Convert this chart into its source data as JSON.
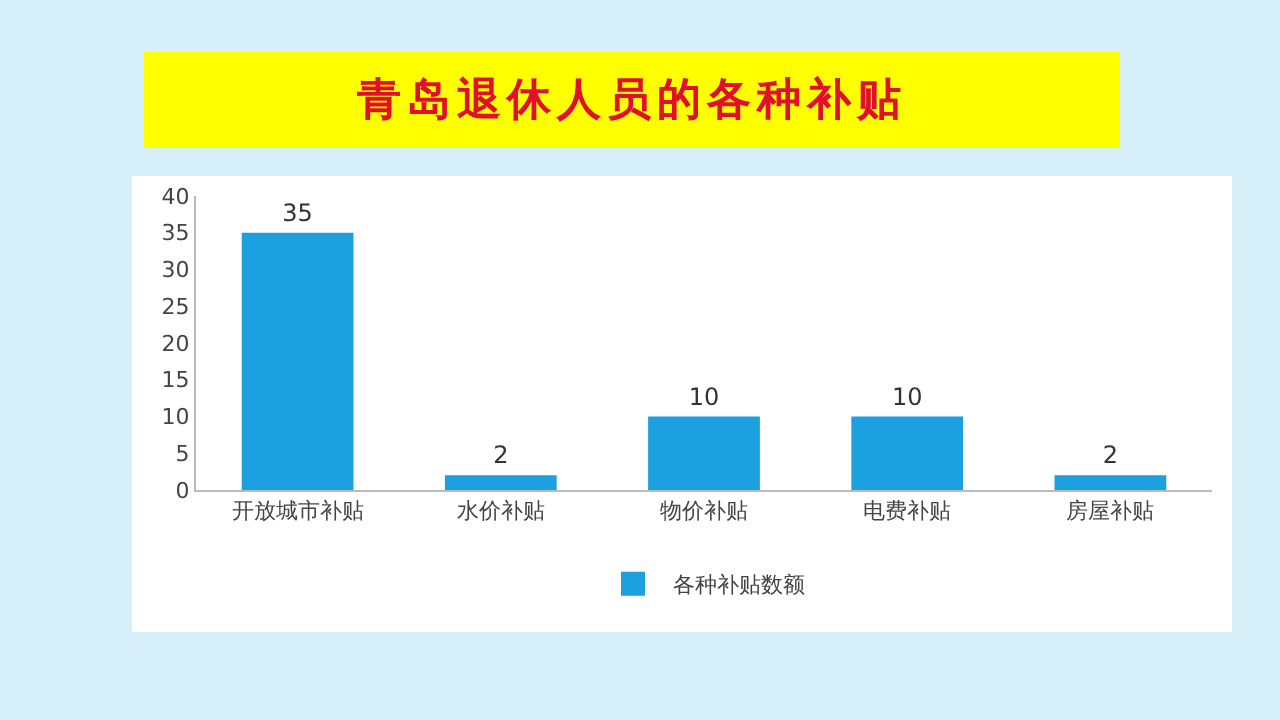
{
  "chart_data": {
    "type": "bar",
    "title": "青岛退休人员的各种补贴",
    "categories": [
      "开放城市补贴",
      "水价补贴",
      "物价补贴",
      "电费补贴",
      "房屋补贴"
    ],
    "series": [
      {
        "name": "各种补贴数额",
        "color": "#1ba1e0",
        "values": [
          35,
          2,
          10,
          10,
          2
        ]
      }
    ],
    "ylim": [
      0,
      40
    ],
    "yticks": [
      0,
      5,
      10,
      15,
      20,
      25,
      30,
      35,
      40
    ],
    "grid": false,
    "data_labels": true,
    "legend": "bottom"
  }
}
